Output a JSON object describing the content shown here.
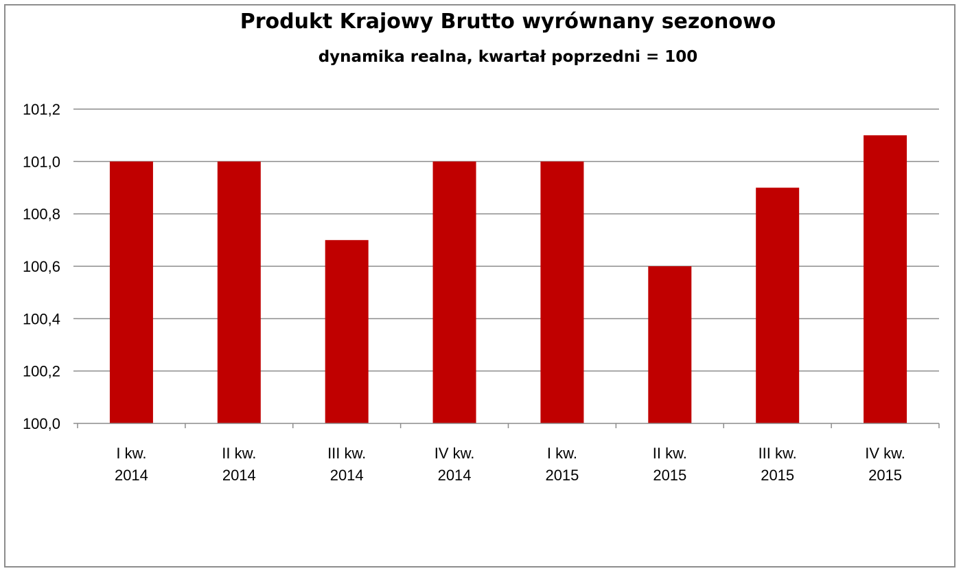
{
  "chart_data": {
    "type": "bar",
    "title": "Produkt Krajowy Brutto wyrównany sezonowo",
    "subtitle": "dynamika realna, kwartał poprzedni = 100",
    "categories": [
      [
        "I kw.",
        "2014"
      ],
      [
        "II kw.",
        "2014"
      ],
      [
        "III kw.",
        "2014"
      ],
      [
        "IV kw.",
        "2014"
      ],
      [
        "I kw.",
        "2015"
      ],
      [
        "II kw.",
        "2015"
      ],
      [
        "III kw.",
        "2015"
      ],
      [
        "IV kw.",
        "2015"
      ]
    ],
    "values": [
      101.0,
      101.0,
      100.7,
      101.0,
      101.0,
      100.6,
      100.9,
      101.1
    ],
    "ylim": [
      100.0,
      101.2
    ],
    "yticks": [
      "100,0",
      "100,2",
      "100,4",
      "100,6",
      "100,8",
      "101,0",
      "101,2"
    ],
    "xlabel": "",
    "ylabel": "",
    "grid": true,
    "legend": "none",
    "bar_color": "#c00000",
    "grid_color": "#8c8c8c"
  }
}
